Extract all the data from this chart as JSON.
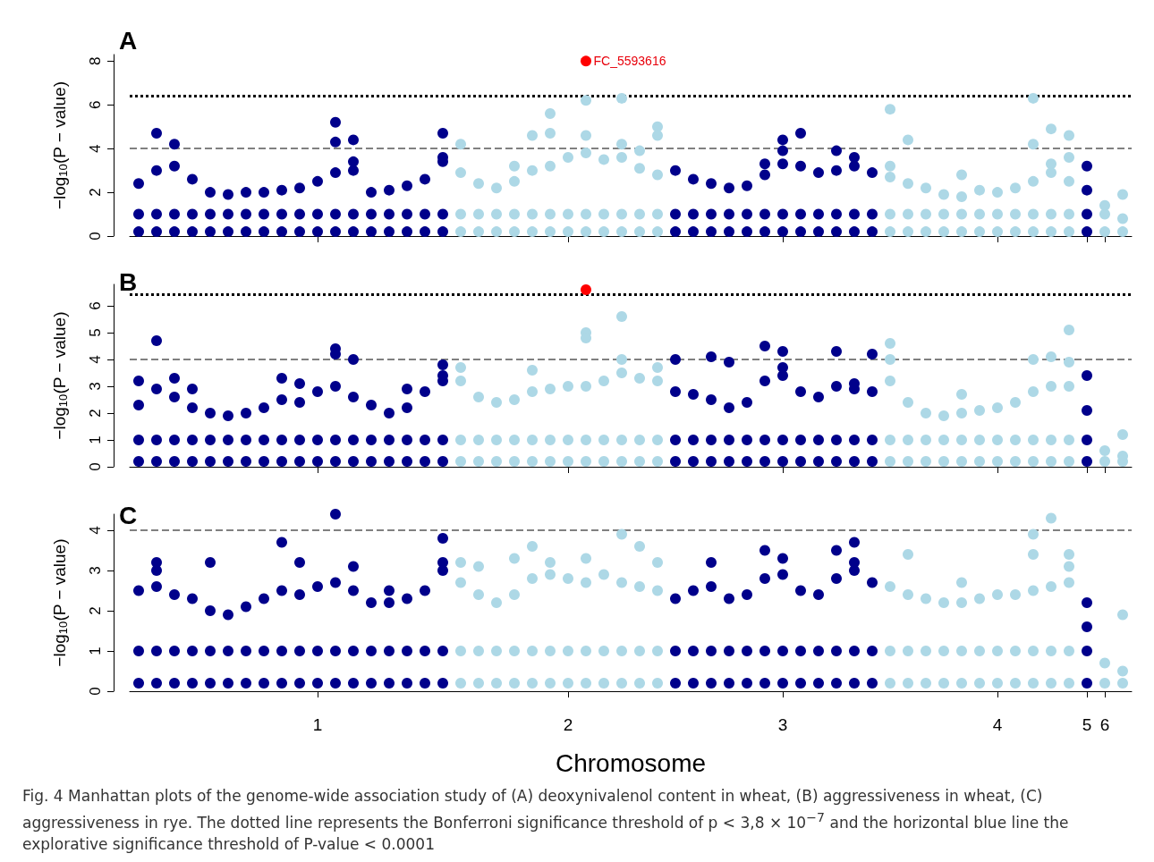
{
  "chart_data": [
    {
      "type": "scatter",
      "title": "A",
      "ylabel": "−log$_{10}$(P − value)",
      "marker": "circle",
      "tick_labels": "y",
      "categories": [
        null,
        null,
        null,
        null,
        null,
        null,
        null,
        null,
        null,
        null,
        "1",
        null,
        null,
        null,
        null,
        null,
        null,
        null,
        null,
        null,
        null,
        null,
        null,
        null,
        "2",
        null,
        null,
        null,
        null,
        null,
        null,
        null,
        null,
        null,
        null,
        null,
        "3",
        null,
        null,
        null,
        null,
        null,
        null,
        null,
        null,
        null,
        null,
        null,
        "4",
        null,
        null,
        null,
        null,
        "5",
        "6",
        null
      ],
      "ylim": [
        0,
        8.3
      ],
      "yticks": [
        0,
        2,
        4,
        6,
        8
      ],
      "ref_lines": [
        {
          "axis": "y",
          "value": 6.42,
          "color": "#000000",
          "line_style": "dotted"
        },
        {
          "axis": "y",
          "value": 4,
          "color": "#808080",
          "line_style": "dashed"
        }
      ],
      "annotations": [
        "FC_5593616"
      ],
      "series": [
        {
          "color": "#00008b",
          "values": [
            0.2,
            0.2,
            0.2,
            0.2,
            0.2,
            0.2,
            0.2,
            0.2,
            0.2,
            0.2,
            0.2,
            0.2,
            0.2,
            0.2,
            0.2,
            0.2,
            0.2,
            0.2,
            null,
            null,
            null,
            null,
            null,
            null,
            null,
            null,
            null,
            null,
            null,
            null,
            0.2,
            0.2,
            0.2,
            0.2,
            0.2,
            0.2,
            0.2,
            0.2,
            0.2,
            0.2,
            0.2,
            0.2,
            null,
            null,
            null,
            null,
            null,
            null,
            null,
            null,
            null,
            null,
            null,
            0.2,
            null,
            null
          ]
        },
        {
          "color": "#00008b",
          "values": [
            1.0,
            1.0,
            1.0,
            1.0,
            1.0,
            1.0,
            1.0,
            1.0,
            1.0,
            1.0,
            1.0,
            1.0,
            1.0,
            1.0,
            1.0,
            1.0,
            1.0,
            1.0,
            null,
            null,
            null,
            null,
            null,
            null,
            null,
            null,
            null,
            null,
            null,
            null,
            1.0,
            1.0,
            1.0,
            1.0,
            1.0,
            1.0,
            1.0,
            1.0,
            1.0,
            1.0,
            1.0,
            1.0,
            null,
            null,
            null,
            null,
            null,
            null,
            null,
            null,
            null,
            null,
            null,
            1.0,
            null,
            null
          ]
        },
        {
          "color": "#00008b",
          "values": [
            2.4,
            3.0,
            3.2,
            2.6,
            2.0,
            1.9,
            2.0,
            2.0,
            2.1,
            2.2,
            2.5,
            2.9,
            3.0,
            2.0,
            2.1,
            2.3,
            2.6,
            3.4,
            null,
            null,
            null,
            null,
            null,
            null,
            null,
            null,
            null,
            null,
            null,
            null,
            3.0,
            2.6,
            2.4,
            2.2,
            2.3,
            2.8,
            3.3,
            3.2,
            2.9,
            3.0,
            3.2,
            2.9,
            null,
            null,
            null,
            null,
            null,
            null,
            null,
            null,
            null,
            null,
            null,
            2.1,
            null,
            null
          ]
        },
        {
          "color": "#00008b",
          "values": [
            null,
            4.7,
            4.2,
            null,
            null,
            null,
            null,
            null,
            null,
            null,
            null,
            5.2,
            4.4,
            null,
            null,
            null,
            null,
            4.7,
            null,
            null,
            null,
            null,
            null,
            null,
            null,
            null,
            null,
            null,
            null,
            null,
            null,
            null,
            null,
            null,
            null,
            3.3,
            4.4,
            4.7,
            null,
            3.9,
            3.6,
            null,
            null,
            null,
            null,
            null,
            null,
            null,
            null,
            null,
            null,
            null,
            null,
            3.2,
            null,
            null
          ]
        },
        {
          "color": "#00008b",
          "values": [
            null,
            null,
            null,
            null,
            null,
            null,
            null,
            null,
            null,
            null,
            null,
            4.3,
            3.4,
            null,
            null,
            null,
            null,
            3.6,
            null,
            null,
            null,
            null,
            null,
            null,
            null,
            null,
            null,
            null,
            null,
            null,
            null,
            null,
            null,
            null,
            null,
            null,
            3.9,
            null,
            null,
            null,
            null,
            null,
            null,
            null,
            null,
            null,
            null,
            null,
            null,
            null,
            null,
            null,
            null,
            null,
            null,
            null
          ]
        },
        {
          "color": "#add8e6",
          "values": [
            null,
            null,
            null,
            null,
            null,
            null,
            null,
            null,
            null,
            null,
            null,
            null,
            null,
            null,
            null,
            null,
            null,
            null,
            0.2,
            0.2,
            0.2,
            0.2,
            0.2,
            0.2,
            0.2,
            0.2,
            0.2,
            0.2,
            0.2,
            0.2,
            null,
            null,
            null,
            null,
            null,
            null,
            null,
            null,
            null,
            null,
            null,
            null,
            0.2,
            0.2,
            0.2,
            0.2,
            0.2,
            0.2,
            0.2,
            0.2,
            0.2,
            0.2,
            0.2,
            null,
            0.2,
            0.2
          ]
        },
        {
          "color": "#add8e6",
          "values": [
            null,
            null,
            null,
            null,
            null,
            null,
            null,
            null,
            null,
            null,
            null,
            null,
            null,
            null,
            null,
            null,
            null,
            null,
            1.0,
            1.0,
            1.0,
            1.0,
            1.0,
            1.0,
            1.0,
            1.0,
            1.0,
            1.0,
            1.0,
            1.0,
            null,
            null,
            null,
            null,
            null,
            null,
            null,
            null,
            null,
            null,
            null,
            null,
            1.0,
            1.0,
            1.0,
            1.0,
            1.0,
            1.0,
            1.0,
            1.0,
            1.0,
            1.0,
            1.0,
            null,
            1.0,
            null
          ]
        },
        {
          "color": "#add8e6",
          "values": [
            null,
            null,
            null,
            null,
            null,
            null,
            null,
            null,
            null,
            null,
            null,
            null,
            null,
            null,
            null,
            null,
            null,
            null,
            2.9,
            2.4,
            2.2,
            2.5,
            3.0,
            3.2,
            3.6,
            3.8,
            3.5,
            3.6,
            3.1,
            2.8,
            null,
            null,
            null,
            null,
            null,
            null,
            null,
            null,
            null,
            null,
            null,
            null,
            2.7,
            2.4,
            2.2,
            1.9,
            1.8,
            2.1,
            2.0,
            2.2,
            2.5,
            2.9,
            2.5,
            null,
            1.4,
            0.8
          ]
        },
        {
          "color": "#add8e6",
          "values": [
            null,
            null,
            null,
            null,
            null,
            null,
            null,
            null,
            null,
            null,
            null,
            null,
            null,
            null,
            null,
            null,
            null,
            null,
            4.2,
            null,
            null,
            3.2,
            4.6,
            5.6,
            null,
            6.2,
            null,
            6.3,
            3.9,
            5.0,
            null,
            null,
            null,
            null,
            null,
            null,
            null,
            null,
            null,
            null,
            null,
            null,
            5.8,
            4.4,
            null,
            null,
            2.8,
            null,
            null,
            null,
            6.3,
            4.9,
            4.6,
            null,
            null,
            1.9
          ]
        },
        {
          "color": "#add8e6",
          "values": [
            null,
            null,
            null,
            null,
            null,
            null,
            null,
            null,
            null,
            null,
            null,
            null,
            null,
            null,
            null,
            null,
            null,
            null,
            null,
            null,
            null,
            null,
            null,
            4.7,
            null,
            4.6,
            null,
            4.2,
            null,
            4.6,
            null,
            null,
            null,
            null,
            null,
            null,
            null,
            null,
            null,
            null,
            null,
            null,
            3.2,
            null,
            null,
            null,
            null,
            null,
            null,
            null,
            4.2,
            3.3,
            3.6,
            null,
            null,
            null
          ]
        },
        {
          "color": "#ff0000",
          "values": [
            null,
            null,
            null,
            null,
            null,
            null,
            null,
            null,
            null,
            null,
            null,
            null,
            null,
            null,
            null,
            null,
            null,
            null,
            null,
            null,
            null,
            null,
            null,
            null,
            null,
            8.0,
            null,
            null,
            null,
            null,
            null,
            null,
            null,
            null,
            null,
            null,
            null,
            null,
            null,
            null,
            null,
            null,
            null,
            null,
            null,
            null,
            null,
            null,
            null,
            null,
            null,
            null,
            null,
            null,
            null,
            null
          ]
        }
      ]
    },
    {
      "type": "scatter",
      "title": "B",
      "ylabel": "−log$_{10}$(P − value)",
      "marker": "circle",
      "tick_labels": "y",
      "categories": [
        null,
        null,
        null,
        null,
        null,
        null,
        null,
        null,
        null,
        null,
        "1",
        null,
        null,
        null,
        null,
        null,
        null,
        null,
        null,
        null,
        null,
        null,
        null,
        null,
        "2",
        null,
        null,
        null,
        null,
        null,
        null,
        null,
        null,
        null,
        null,
        null,
        "3",
        null,
        null,
        null,
        null,
        null,
        null,
        null,
        null,
        null,
        null,
        null,
        "4",
        null,
        null,
        null,
        null,
        "5",
        "6",
        null
      ],
      "ylim": [
        0,
        6.8
      ],
      "yticks": [
        0,
        1,
        2,
        3,
        4,
        5,
        6
      ],
      "ref_lines": [
        {
          "axis": "y",
          "value": 6.42,
          "color": "#000000",
          "line_style": "dotted"
        },
        {
          "axis": "y",
          "value": 4,
          "color": "#808080",
          "line_style": "dashed"
        }
      ],
      "series": [
        {
          "color": "#00008b",
          "values": [
            0.2,
            0.2,
            0.2,
            0.2,
            0.2,
            0.2,
            0.2,
            0.2,
            0.2,
            0.2,
            0.2,
            0.2,
            0.2,
            0.2,
            0.2,
            0.2,
            0.2,
            0.2,
            null,
            null,
            null,
            null,
            null,
            null,
            null,
            null,
            null,
            null,
            null,
            null,
            0.2,
            0.2,
            0.2,
            0.2,
            0.2,
            0.2,
            0.2,
            0.2,
            0.2,
            0.2,
            0.2,
            0.2,
            null,
            null,
            null,
            null,
            null,
            null,
            null,
            null,
            null,
            null,
            null,
            0.2,
            null,
            null
          ]
        },
        {
          "color": "#00008b",
          "values": [
            1.0,
            1.0,
            1.0,
            1.0,
            1.0,
            1.0,
            1.0,
            1.0,
            1.0,
            1.0,
            1.0,
            1.0,
            1.0,
            1.0,
            1.0,
            1.0,
            1.0,
            1.0,
            null,
            null,
            null,
            null,
            null,
            null,
            null,
            null,
            null,
            null,
            null,
            null,
            1.0,
            1.0,
            1.0,
            1.0,
            1.0,
            1.0,
            1.0,
            1.0,
            1.0,
            1.0,
            1.0,
            1.0,
            null,
            null,
            null,
            null,
            null,
            null,
            null,
            null,
            null,
            null,
            null,
            1.0,
            null,
            null
          ]
        },
        {
          "color": "#00008b",
          "values": [
            2.3,
            2.9,
            2.6,
            2.2,
            2.0,
            1.9,
            2.0,
            2.2,
            2.5,
            2.4,
            2.8,
            3.0,
            2.6,
            2.3,
            2.0,
            2.2,
            2.8,
            3.2,
            null,
            null,
            null,
            null,
            null,
            null,
            null,
            null,
            null,
            null,
            null,
            null,
            2.8,
            2.7,
            2.5,
            2.2,
            2.4,
            3.2,
            3.4,
            2.8,
            2.6,
            3.0,
            2.9,
            2.8,
            null,
            null,
            null,
            null,
            null,
            null,
            null,
            null,
            null,
            null,
            null,
            2.1,
            null,
            null
          ]
        },
        {
          "color": "#00008b",
          "values": [
            3.2,
            4.7,
            3.3,
            2.9,
            null,
            null,
            null,
            null,
            3.3,
            3.1,
            null,
            4.4,
            4.0,
            null,
            null,
            2.9,
            null,
            3.8,
            null,
            null,
            null,
            null,
            null,
            null,
            null,
            null,
            null,
            null,
            null,
            null,
            4.0,
            null,
            4.1,
            3.9,
            null,
            4.5,
            4.3,
            null,
            null,
            4.3,
            3.1,
            4.2,
            null,
            null,
            null,
            null,
            null,
            null,
            null,
            null,
            null,
            null,
            null,
            3.4,
            null,
            null
          ]
        },
        {
          "color": "#00008b",
          "values": [
            null,
            null,
            null,
            null,
            null,
            null,
            null,
            null,
            null,
            null,
            null,
            4.2,
            null,
            null,
            null,
            null,
            null,
            3.4,
            null,
            null,
            null,
            null,
            null,
            null,
            null,
            null,
            null,
            null,
            null,
            null,
            null,
            null,
            null,
            null,
            null,
            null,
            3.7,
            null,
            null,
            null,
            null,
            null,
            null,
            null,
            null,
            null,
            null,
            null,
            null,
            null,
            null,
            null,
            null,
            null,
            null,
            null
          ]
        },
        {
          "color": "#add8e6",
          "values": [
            null,
            null,
            null,
            null,
            null,
            null,
            null,
            null,
            null,
            null,
            null,
            null,
            null,
            null,
            null,
            null,
            null,
            null,
            0.2,
            0.2,
            0.2,
            0.2,
            0.2,
            0.2,
            0.2,
            0.2,
            0.2,
            0.2,
            0.2,
            0.2,
            null,
            null,
            null,
            null,
            null,
            null,
            null,
            null,
            null,
            null,
            null,
            null,
            0.2,
            0.2,
            0.2,
            0.2,
            0.2,
            0.2,
            0.2,
            0.2,
            0.2,
            0.2,
            0.2,
            null,
            0.2,
            0.2
          ]
        },
        {
          "color": "#add8e6",
          "values": [
            null,
            null,
            null,
            null,
            null,
            null,
            null,
            null,
            null,
            null,
            null,
            null,
            null,
            null,
            null,
            null,
            null,
            null,
            1.0,
            1.0,
            1.0,
            1.0,
            1.0,
            1.0,
            1.0,
            1.0,
            1.0,
            1.0,
            1.0,
            1.0,
            null,
            null,
            null,
            null,
            null,
            null,
            null,
            null,
            null,
            null,
            null,
            null,
            1.0,
            1.0,
            1.0,
            1.0,
            1.0,
            1.0,
            1.0,
            1.0,
            1.0,
            1.0,
            1.0,
            null,
            null,
            null
          ]
        },
        {
          "color": "#add8e6",
          "values": [
            null,
            null,
            null,
            null,
            null,
            null,
            null,
            null,
            null,
            null,
            null,
            null,
            null,
            null,
            null,
            null,
            null,
            null,
            3.2,
            2.6,
            2.4,
            2.5,
            2.8,
            2.9,
            3.0,
            3.0,
            3.2,
            3.5,
            3.3,
            3.2,
            null,
            null,
            null,
            null,
            null,
            null,
            null,
            null,
            null,
            null,
            null,
            null,
            3.2,
            2.4,
            2.0,
            1.9,
            2.0,
            2.1,
            2.2,
            2.4,
            2.8,
            3.0,
            3.0,
            null,
            0.6,
            0.4
          ]
        },
        {
          "color": "#add8e6",
          "values": [
            null,
            null,
            null,
            null,
            null,
            null,
            null,
            null,
            null,
            null,
            null,
            null,
            null,
            null,
            null,
            null,
            null,
            null,
            3.7,
            null,
            null,
            null,
            3.6,
            null,
            null,
            5.0,
            null,
            5.6,
            null,
            3.7,
            null,
            null,
            null,
            null,
            null,
            null,
            null,
            null,
            null,
            null,
            null,
            null,
            4.6,
            null,
            null,
            null,
            2.7,
            null,
            null,
            null,
            4.0,
            4.1,
            5.1,
            null,
            null,
            1.2
          ]
        },
        {
          "color": "#add8e6",
          "values": [
            null,
            null,
            null,
            null,
            null,
            null,
            null,
            null,
            null,
            null,
            null,
            null,
            null,
            null,
            null,
            null,
            null,
            null,
            null,
            null,
            null,
            null,
            null,
            null,
            null,
            4.8,
            null,
            4.0,
            null,
            null,
            null,
            null,
            null,
            null,
            null,
            null,
            null,
            null,
            null,
            null,
            null,
            null,
            4.0,
            null,
            null,
            null,
            null,
            null,
            null,
            null,
            null,
            null,
            3.9,
            null,
            null,
            null
          ]
        },
        {
          "color": "#ff0000",
          "values": [
            null,
            null,
            null,
            null,
            null,
            null,
            null,
            null,
            null,
            null,
            null,
            null,
            null,
            null,
            null,
            null,
            null,
            null,
            null,
            null,
            null,
            null,
            null,
            null,
            null,
            6.6,
            null,
            null,
            null,
            null,
            null,
            null,
            null,
            null,
            null,
            null,
            null,
            null,
            null,
            null,
            null,
            null,
            null,
            null,
            null,
            null,
            null,
            null,
            null,
            null,
            null,
            null,
            null,
            null,
            null,
            null
          ]
        }
      ]
    },
    {
      "type": "scatter",
      "title": "C",
      "xlabel": "Chromosome",
      "ylabel": "−log$_{10}$(P − value)",
      "marker": "circle",
      "categories": [
        null,
        null,
        null,
        null,
        null,
        null,
        null,
        null,
        null,
        null,
        "1",
        null,
        null,
        null,
        null,
        null,
        null,
        null,
        null,
        null,
        null,
        null,
        null,
        null,
        "2",
        null,
        null,
        null,
        null,
        null,
        null,
        null,
        null,
        null,
        null,
        null,
        "3",
        null,
        null,
        null,
        null,
        null,
        null,
        null,
        null,
        null,
        null,
        null,
        "4",
        null,
        null,
        null,
        null,
        "5",
        "6",
        null
      ],
      "ylim": [
        0,
        4.4
      ],
      "yticks": [
        0,
        1,
        2,
        3,
        4
      ],
      "ref_lines": [
        {
          "axis": "y",
          "value": 4,
          "color": "#808080",
          "line_style": "dashed"
        }
      ],
      "annotations": [
        "Fig. 4 Manhattan plots of the genome-wide association study of (A) deoxynivalenol content in wheat, (B) aggressiveness in wheat, (C) aggressiveness in rye. The dotted line represents the Bonferroni significance threshold of p < 3,8 × 10$^{−7}$ and the horizontal blue line the explorative significance threshold of P-value < 0.0001"
      ],
      "series": [
        {
          "color": "#00008b",
          "values": [
            0.2,
            0.2,
            0.2,
            0.2,
            0.2,
            0.2,
            0.2,
            0.2,
            0.2,
            0.2,
            0.2,
            0.2,
            0.2,
            0.2,
            0.2,
            0.2,
            0.2,
            0.2,
            null,
            null,
            null,
            null,
            null,
            null,
            null,
            null,
            null,
            null,
            null,
            null,
            0.2,
            0.2,
            0.2,
            0.2,
            0.2,
            0.2,
            0.2,
            0.2,
            0.2,
            0.2,
            0.2,
            0.2,
            null,
            null,
            null,
            null,
            null,
            null,
            null,
            null,
            null,
            null,
            null,
            0.2,
            null,
            null
          ]
        },
        {
          "color": "#00008b",
          "values": [
            1.0,
            1.0,
            1.0,
            1.0,
            1.0,
            1.0,
            1.0,
            1.0,
            1.0,
            1.0,
            1.0,
            1.0,
            1.0,
            1.0,
            1.0,
            1.0,
            1.0,
            1.0,
            null,
            null,
            null,
            null,
            null,
            null,
            null,
            null,
            null,
            null,
            null,
            null,
            1.0,
            1.0,
            1.0,
            1.0,
            1.0,
            1.0,
            1.0,
            1.0,
            1.0,
            1.0,
            1.0,
            1.0,
            null,
            null,
            null,
            null,
            null,
            null,
            null,
            null,
            null,
            null,
            null,
            1.0,
            null,
            null
          ]
        },
        {
          "color": "#00008b",
          "values": [
            2.5,
            2.6,
            2.4,
            2.3,
            2.0,
            1.9,
            2.1,
            2.3,
            2.5,
            2.4,
            2.6,
            2.7,
            2.5,
            2.2,
            2.2,
            2.3,
            2.5,
            3.0,
            null,
            null,
            null,
            null,
            null,
            null,
            null,
            null,
            null,
            null,
            null,
            null,
            2.3,
            2.5,
            2.6,
            2.3,
            2.4,
            2.8,
            2.9,
            2.5,
            2.4,
            2.8,
            3.0,
            2.7,
            null,
            null,
            null,
            null,
            null,
            null,
            null,
            null,
            null,
            null,
            null,
            2.2,
            null,
            null
          ]
        },
        {
          "color": "#00008b",
          "values": [
            null,
            3.2,
            null,
            null,
            3.2,
            null,
            null,
            null,
            3.7,
            3.2,
            null,
            4.4,
            3.1,
            null,
            2.5,
            null,
            null,
            3.8,
            null,
            null,
            null,
            null,
            null,
            null,
            null,
            null,
            null,
            null,
            null,
            null,
            null,
            null,
            3.2,
            null,
            null,
            3.5,
            3.3,
            null,
            null,
            3.5,
            3.7,
            null,
            null,
            null,
            null,
            null,
            null,
            null,
            null,
            null,
            null,
            null,
            null,
            null,
            null,
            null
          ]
        },
        {
          "color": "#00008b",
          "values": [
            null,
            3.0,
            null,
            null,
            null,
            null,
            null,
            null,
            null,
            null,
            null,
            null,
            null,
            null,
            null,
            null,
            null,
            3.2,
            null,
            null,
            null,
            null,
            null,
            null,
            null,
            null,
            null,
            null,
            null,
            null,
            null,
            null,
            null,
            null,
            null,
            null,
            null,
            null,
            null,
            null,
            3.2,
            null,
            null,
            null,
            null,
            null,
            null,
            null,
            null,
            null,
            null,
            null,
            null,
            1.6,
            null,
            null
          ]
        },
        {
          "color": "#add8e6",
          "values": [
            null,
            null,
            null,
            null,
            null,
            null,
            null,
            null,
            null,
            null,
            null,
            null,
            null,
            null,
            null,
            null,
            null,
            null,
            0.2,
            0.2,
            0.2,
            0.2,
            0.2,
            0.2,
            0.2,
            0.2,
            0.2,
            0.2,
            0.2,
            0.2,
            null,
            null,
            null,
            null,
            null,
            null,
            null,
            null,
            null,
            null,
            null,
            null,
            0.2,
            0.2,
            0.2,
            0.2,
            0.2,
            0.2,
            0.2,
            0.2,
            0.2,
            0.2,
            0.2,
            null,
            0.2,
            0.2
          ]
        },
        {
          "color": "#add8e6",
          "values": [
            null,
            null,
            null,
            null,
            null,
            null,
            null,
            null,
            null,
            null,
            null,
            null,
            null,
            null,
            null,
            null,
            null,
            null,
            1.0,
            1.0,
            1.0,
            1.0,
            1.0,
            1.0,
            1.0,
            1.0,
            1.0,
            1.0,
            1.0,
            1.0,
            null,
            null,
            null,
            null,
            null,
            null,
            null,
            null,
            null,
            null,
            null,
            null,
            1.0,
            1.0,
            1.0,
            1.0,
            1.0,
            1.0,
            1.0,
            1.0,
            1.0,
            1.0,
            1.0,
            null,
            null,
            null
          ]
        },
        {
          "color": "#add8e6",
          "values": [
            null,
            null,
            null,
            null,
            null,
            null,
            null,
            null,
            null,
            null,
            null,
            null,
            null,
            null,
            null,
            null,
            null,
            null,
            2.7,
            2.4,
            2.2,
            2.4,
            2.8,
            2.9,
            2.8,
            2.7,
            2.9,
            2.7,
            2.6,
            2.5,
            null,
            null,
            null,
            null,
            null,
            null,
            null,
            null,
            null,
            null,
            null,
            null,
            2.6,
            2.4,
            2.3,
            2.2,
            2.2,
            2.3,
            2.4,
            2.4,
            2.5,
            2.6,
            2.7,
            null,
            0.7,
            0.5
          ]
        },
        {
          "color": "#add8e6",
          "values": [
            null,
            null,
            null,
            null,
            null,
            null,
            null,
            null,
            null,
            null,
            null,
            null,
            null,
            null,
            null,
            null,
            null,
            null,
            3.2,
            3.1,
            null,
            3.3,
            3.6,
            3.2,
            null,
            3.3,
            null,
            3.9,
            3.6,
            3.2,
            null,
            null,
            null,
            null,
            null,
            null,
            null,
            null,
            null,
            null,
            null,
            null,
            null,
            3.4,
            null,
            null,
            2.7,
            null,
            null,
            null,
            3.9,
            4.3,
            3.4,
            null,
            null,
            1.9
          ]
        },
        {
          "color": "#add8e6",
          "values": [
            null,
            null,
            null,
            null,
            null,
            null,
            null,
            null,
            null,
            null,
            null,
            null,
            null,
            null,
            null,
            null,
            null,
            null,
            null,
            null,
            null,
            null,
            null,
            null,
            null,
            null,
            null,
            null,
            null,
            null,
            null,
            null,
            null,
            null,
            null,
            null,
            null,
            null,
            null,
            null,
            null,
            null,
            null,
            null,
            null,
            null,
            null,
            null,
            null,
            null,
            3.4,
            null,
            3.1,
            null,
            null,
            null
          ]
        }
      ]
    }
  ]
}
